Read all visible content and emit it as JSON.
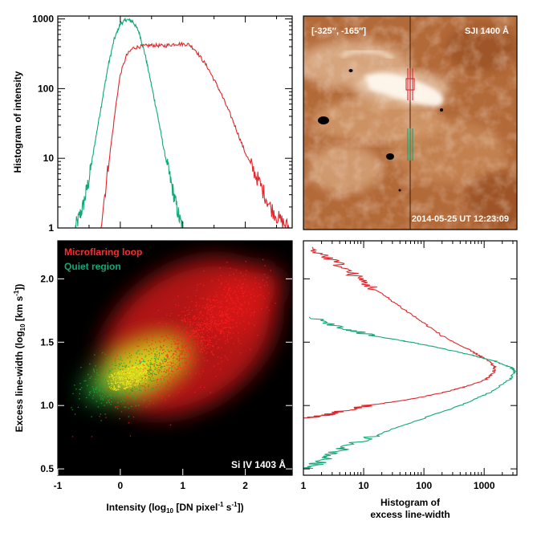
{
  "colors": {
    "red": "#e0262a",
    "green": "#10a878",
    "black_bg": "#000000",
    "solar_base": "#a45a2c",
    "scatter_red": "#ff2222",
    "scatter_green": "#1e9a32",
    "scatter_yellow": "#f2f020"
  },
  "chart_data": [
    {
      "panel": "intensity-histogram",
      "type": "line",
      "ylabel": "Histogram of intensity",
      "yscale": "log",
      "xlim": [
        -1,
        2.75
      ],
      "ylim": [
        1,
        1100
      ],
      "x_ticks": [
        -1,
        0,
        1,
        2
      ],
      "y_ticks": [
        1,
        10,
        100,
        1000
      ],
      "y_tick_labels": [
        "1",
        "10",
        "100",
        "1000"
      ],
      "series": [
        {
          "name": "Quiet region",
          "color": "#10a878",
          "x": [
            -0.72,
            -0.6,
            -0.5,
            -0.4,
            -0.3,
            -0.2,
            -0.1,
            0.0,
            0.1,
            0.2,
            0.3,
            0.4,
            0.5,
            0.6,
            0.7,
            0.8,
            0.9,
            0.95,
            1.0
          ],
          "y": [
            1,
            2,
            5,
            18,
            60,
            200,
            500,
            850,
            980,
            920,
            650,
            300,
            110,
            40,
            13,
            5,
            2,
            1.3,
            1
          ]
        },
        {
          "name": "Microflaring loop",
          "color": "#e0262a",
          "x": [
            -0.32,
            -0.25,
            -0.15,
            -0.05,
            0.0,
            0.1,
            0.2,
            0.3,
            0.5,
            0.7,
            0.9,
            1.1,
            1.2,
            1.4,
            1.6,
            1.8,
            2.0,
            2.2,
            2.4,
            2.55,
            2.7
          ],
          "y": [
            1,
            3,
            15,
            80,
            160,
            300,
            380,
            400,
            420,
            410,
            440,
            430,
            360,
            200,
            90,
            35,
            12,
            5,
            2,
            1.3,
            1
          ]
        }
      ]
    },
    {
      "panel": "sji-image",
      "type": "image",
      "labels": {
        "coords": "[-325″, -165″]",
        "channel": "SJI 1400 Å",
        "timestamp": "2014-05-25 UT 12:23:09"
      }
    },
    {
      "panel": "scatter",
      "type": "scatter",
      "xlabel": "Intensity (log10 [DN pixel-1 s-1])",
      "ylabel": "Excess line-width (log10 [km s-1])",
      "xlim": [
        -1,
        2.75
      ],
      "ylim": [
        0.45,
        2.3
      ],
      "x_ticks": [
        -1,
        0,
        1,
        2
      ],
      "y_ticks": [
        0.5,
        1.0,
        1.5,
        2.0
      ],
      "y_tick_labels": [
        "0.5",
        "1.0",
        "1.5",
        "2.0"
      ],
      "legend": [
        {
          "name": "Microflaring loop",
          "color": "#ff2222"
        },
        {
          "name": "Quiet region",
          "color": "#10a878"
        }
      ],
      "annotation": "Si IV 1403 Å",
      "clusters": [
        {
          "name": "Microflaring loop",
          "center": [
            1.2,
            1.55
          ],
          "spread": [
            0.7,
            0.3
          ]
        },
        {
          "name": "Quiet region",
          "center": [
            0.1,
            1.22
          ],
          "spread": [
            0.35,
            0.13
          ]
        }
      ]
    },
    {
      "panel": "linewidth-histogram",
      "type": "line",
      "xlabel_lines": [
        "Histogram of",
        "excess line-width"
      ],
      "xscale": "log",
      "xlim": [
        1,
        3500
      ],
      "ylim": [
        0.45,
        2.3
      ],
      "x_ticks": [
        1,
        10,
        100,
        1000
      ],
      "x_tick_labels": [
        "1",
        "10",
        "100",
        "1000"
      ],
      "series": [
        {
          "name": "Microflaring loop",
          "color": "#e0262a",
          "y": [
            2.25,
            2.15,
            2.05,
            1.95,
            1.85,
            1.75,
            1.65,
            1.55,
            1.45,
            1.4,
            1.35,
            1.3,
            1.25,
            1.2,
            1.15,
            1.1,
            1.05,
            1.0,
            0.95,
            0.92,
            0.9
          ],
          "x": [
            1.2,
            3,
            6,
            12,
            25,
            50,
            100,
            200,
            500,
            800,
            1200,
            1500,
            1400,
            1000,
            500,
            200,
            60,
            12,
            4,
            2,
            1
          ]
        },
        {
          "name": "Quiet region",
          "color": "#10a878",
          "y": [
            1.7,
            1.6,
            1.55,
            1.5,
            1.45,
            1.4,
            1.35,
            1.3,
            1.27,
            1.2,
            1.1,
            1.0,
            0.9,
            0.8,
            0.7,
            0.62,
            0.55,
            0.5
          ],
          "x": [
            1.3,
            5,
            15,
            60,
            200,
            600,
            1500,
            2800,
            3200,
            2600,
            1200,
            400,
            100,
            25,
            7,
            3,
            1.8,
            1.2
          ]
        }
      ]
    }
  ]
}
